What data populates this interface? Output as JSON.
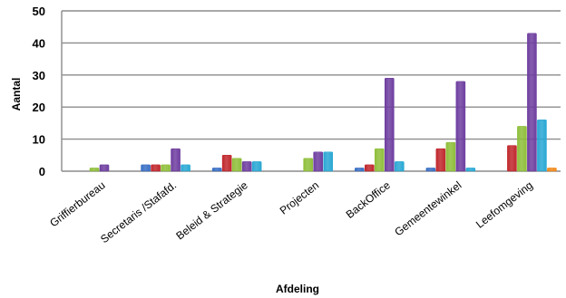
{
  "chart_data": {
    "type": "bar",
    "xlabel": "Afdeling",
    "ylabel": "Aantal",
    "ylim": [
      0,
      50
    ],
    "yticks": [
      0,
      10,
      20,
      30,
      40,
      50
    ],
    "grid": true,
    "legend": "none",
    "categories": [
      "Griffierbureau",
      "Secretaris /Stafafd.",
      "Beleid & Strategie",
      "Projecten",
      "BackOffice",
      "Gemeentewinkel",
      "Leefomgeving"
    ],
    "series": [
      {
        "color": "#3a6fc4",
        "values": [
          0,
          2,
          1,
          0,
          1,
          1,
          0
        ]
      },
      {
        "color": "#c0282d",
        "values": [
          0,
          2,
          5,
          0,
          2,
          7,
          8
        ]
      },
      {
        "color": "#8fbf3b",
        "values": [
          1,
          2,
          4,
          4,
          7,
          9,
          14
        ]
      },
      {
        "color": "#6f3fa0",
        "values": [
          2,
          7,
          3,
          6,
          29,
          28,
          43
        ]
      },
      {
        "color": "#2aa8d4",
        "values": [
          0,
          2,
          3,
          6,
          3,
          1,
          16
        ]
      },
      {
        "color": "#f08a1c",
        "values": [
          0,
          0,
          0,
          0,
          0,
          0,
          1
        ]
      }
    ]
  }
}
